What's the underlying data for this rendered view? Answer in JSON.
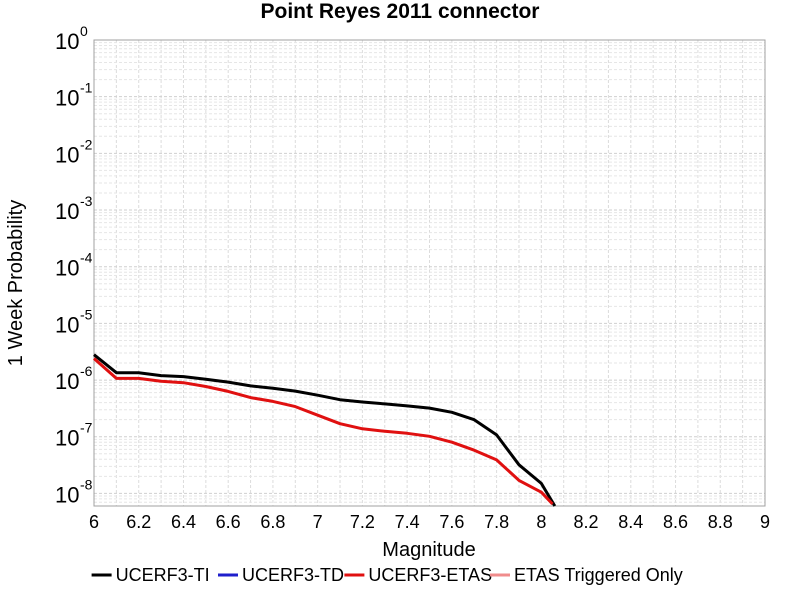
{
  "chart_data": {
    "type": "line",
    "title": "Point Reyes 2011 connector",
    "xlabel": "Magnitude",
    "ylabel": "1 Week Probability",
    "xlim": [
      6,
      9
    ],
    "ylim": [
      6e-09,
      1
    ],
    "yscale": "log",
    "grid": true,
    "legend_position": "bottom",
    "xticks": [
      "6",
      "6.2",
      "6.4",
      "6.6",
      "6.8",
      "7",
      "7.2",
      "7.4",
      "7.6",
      "7.8",
      "8",
      "8.2",
      "8.4",
      "8.6",
      "8.8",
      "9"
    ],
    "yticks": [
      {
        "base": "10",
        "exp": "0"
      },
      {
        "base": "10",
        "exp": "-1"
      },
      {
        "base": "10",
        "exp": "-2"
      },
      {
        "base": "10",
        "exp": "-3"
      },
      {
        "base": "10",
        "exp": "-4"
      },
      {
        "base": "10",
        "exp": "-5"
      },
      {
        "base": "10",
        "exp": "-6"
      },
      {
        "base": "10",
        "exp": "-7"
      },
      {
        "base": "10",
        "exp": "-8"
      }
    ],
    "series": [
      {
        "name": "UCERF3-TI",
        "color": "#000000",
        "x": [
          6.0,
          6.1,
          6.2,
          6.3,
          6.4,
          6.5,
          6.6,
          6.7,
          6.8,
          6.9,
          7.0,
          7.1,
          7.2,
          7.3,
          7.4,
          7.5,
          7.6,
          7.7,
          7.8,
          7.9,
          8.0,
          8.06
        ],
        "y": [
          2.8e-06,
          1.35e-06,
          1.35e-06,
          1.2e-06,
          1.15e-06,
          1.03e-06,
          9.2e-07,
          7.9e-07,
          7.2e-07,
          6.4e-07,
          5.4e-07,
          4.5e-07,
          4.1e-07,
          3.8e-07,
          3.5e-07,
          3.2e-07,
          2.7e-07,
          2e-07,
          1.08e-07,
          3.2e-08,
          1.5e-08,
          6e-09
        ]
      },
      {
        "name": "UCERF3-TD",
        "color": "#1f1fcc",
        "x": [],
        "y": []
      },
      {
        "name": "UCERF3-ETAS",
        "color": "#e01010",
        "x": [
          6.0,
          6.1,
          6.2,
          6.3,
          6.4,
          6.5,
          6.6,
          6.7,
          6.8,
          6.9,
          7.0,
          7.1,
          7.2,
          7.3,
          7.4,
          7.5,
          7.6,
          7.7,
          7.8,
          7.9,
          8.0,
          8.05
        ],
        "y": [
          2.4e-06,
          1.07e-06,
          1.07e-06,
          9.5e-07,
          9e-07,
          7.7e-07,
          6.3e-07,
          4.9e-07,
          4.2e-07,
          3.4e-07,
          2.4e-07,
          1.7e-07,
          1.38e-07,
          1.25e-07,
          1.15e-07,
          1.02e-07,
          8e-08,
          5.8e-08,
          3.9e-08,
          1.7e-08,
          1.05e-08,
          6.5e-09
        ]
      },
      {
        "name": "ETAS Triggered Only",
        "color": "#f08c8c",
        "x": [],
        "y": []
      }
    ]
  }
}
